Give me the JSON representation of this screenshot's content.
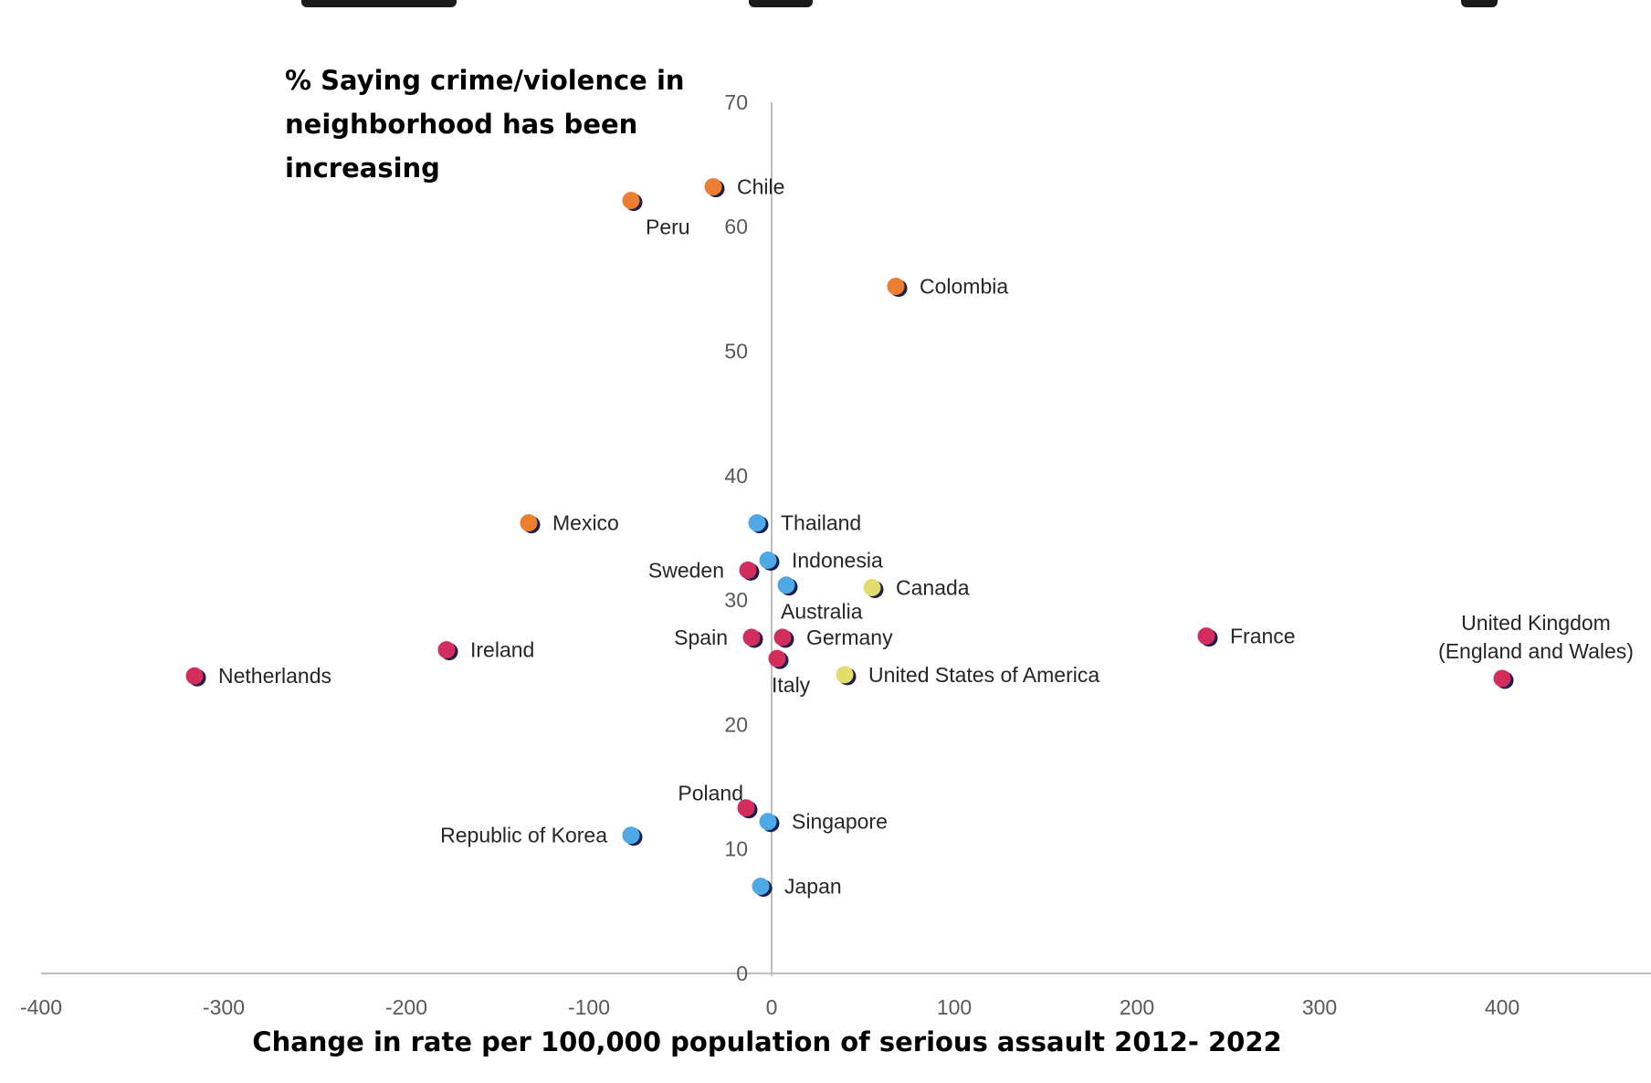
{
  "chart_data": {
    "type": "scatter",
    "ylabel": "% Saying crime/violence in neighborhood has been increasing",
    "xlabel": "Change in rate per 100,000 population of serious assault 2012- 2022",
    "xlim": [
      -400,
      480
    ],
    "ylim": [
      0,
      70
    ],
    "x_ticks": [
      -400,
      -300,
      -200,
      -100,
      0,
      100,
      200,
      300,
      400
    ],
    "x_tick_labels": [
      "-400",
      "-300",
      "-200",
      "-100",
      "0",
      "100",
      "200",
      "300",
      "400"
    ],
    "y_ticks": [
      0,
      10,
      20,
      30,
      40,
      50,
      60,
      70
    ],
    "y_tick_labels": [
      "0",
      "10",
      "20",
      "30",
      "40",
      "50",
      "60",
      "70"
    ],
    "grid": false,
    "legend": "none",
    "colors": {
      "orange": "#ED7D31",
      "blue": "#4EA9E6",
      "red": "#D32D5E",
      "yellow": "#E3DE6C",
      "shadow": "#1B1F4B",
      "axis": "#BFBFBF"
    },
    "points": [
      {
        "label": "Chile",
        "x": -32,
        "y": 63.2,
        "color": "orange",
        "anchor": "right"
      },
      {
        "label": "Peru",
        "x": -77,
        "y": 62.1,
        "color": "orange",
        "anchor": "below-right"
      },
      {
        "label": "Colombia",
        "x": 68,
        "y": 55.2,
        "color": "orange",
        "anchor": "right"
      },
      {
        "label": "Mexico",
        "x": -133,
        "y": 36.2,
        "color": "orange",
        "anchor": "right"
      },
      {
        "label": "Thailand",
        "x": -8,
        "y": 36.2,
        "color": "blue",
        "anchor": "right"
      },
      {
        "label": "Indonesia",
        "x": -2,
        "y": 33.2,
        "color": "blue",
        "anchor": "right"
      },
      {
        "label": "Australia",
        "x": 8,
        "y": 31.2,
        "color": "blue",
        "anchor": "below"
      },
      {
        "label": "Sweden",
        "x": -13,
        "y": 32.4,
        "color": "red",
        "anchor": "left"
      },
      {
        "label": "Canada",
        "x": 55,
        "y": 31.0,
        "color": "yellow",
        "anchor": "right"
      },
      {
        "label": "Spain",
        "x": -11,
        "y": 27.0,
        "color": "red",
        "anchor": "left"
      },
      {
        "label": "Germany",
        "x": 6,
        "y": 27.0,
        "color": "red",
        "anchor": "right"
      },
      {
        "label": "Italy",
        "x": 3,
        "y": 25.3,
        "color": "red",
        "anchor": "below"
      },
      {
        "label": "United States of America",
        "x": 40,
        "y": 24.0,
        "color": "yellow",
        "anchor": "right"
      },
      {
        "label": "Ireland",
        "x": -178,
        "y": 26.0,
        "color": "red",
        "anchor": "right"
      },
      {
        "label": "Netherlands",
        "x": -316,
        "y": 23.9,
        "color": "red",
        "anchor": "right"
      },
      {
        "label": "France",
        "x": 238,
        "y": 27.1,
        "color": "red",
        "anchor": "right"
      },
      {
        "label": "United Kingdom (England and Wales)",
        "label_lines": [
          "United Kingdom",
          "(England and Wales)"
        ],
        "x": 400,
        "y": 23.7,
        "color": "red",
        "anchor": "above"
      },
      {
        "label": "Poland",
        "x": -14,
        "y": 13.3,
        "color": "red",
        "anchor": "above-left"
      },
      {
        "label": "Singapore",
        "x": -2,
        "y": 12.2,
        "color": "blue",
        "anchor": "right"
      },
      {
        "label": "Republic of Korea",
        "x": -77,
        "y": 11.1,
        "color": "blue",
        "anchor": "left"
      },
      {
        "label": "Japan",
        "x": -6,
        "y": 7.0,
        "color": "blue",
        "anchor": "right"
      }
    ]
  }
}
